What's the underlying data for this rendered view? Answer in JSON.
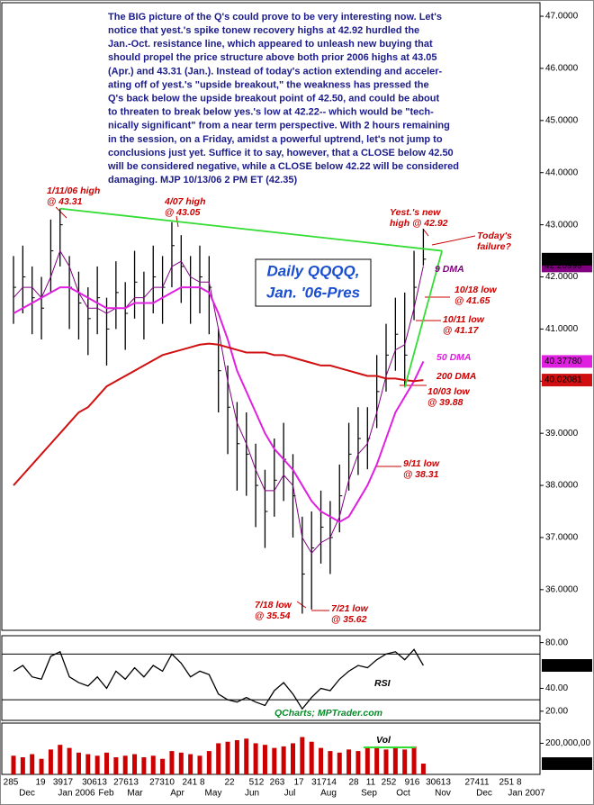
{
  "chart_data": [
    {
      "type": "ohlc",
      "title": [
        "Daily QQQQ,",
        "Jan. '06-Pres"
      ],
      "high": [
        42.4,
        42.6,
        42.2,
        42.0,
        43.1,
        43.31,
        42.4,
        42.1,
        41.8,
        42.2,
        41.6,
        42.3,
        41.9,
        42.5,
        42.1,
        42.6,
        42.4,
        43.05,
        42.8,
        42.4,
        42.6,
        42.4,
        41.0,
        40.3,
        39.6,
        39.4,
        38.8,
        38.3,
        38.9,
        39.2,
        38.6,
        37.4,
        37.5,
        37.9,
        37.7,
        38.4,
        39.2,
        39.5,
        39.5,
        40.5,
        41.1,
        41.6,
        41.7,
        42.5,
        42.92
      ],
      "low": [
        41.1,
        41.3,
        40.9,
        40.8,
        41.7,
        42.2,
        41.0,
        40.8,
        40.5,
        40.9,
        40.3,
        41.0,
        40.6,
        41.2,
        40.8,
        41.3,
        41.1,
        41.8,
        41.5,
        41.1,
        41.3,
        40.9,
        39.4,
        38.6,
        37.9,
        37.8,
        37.2,
        36.8,
        37.4,
        37.7,
        37.0,
        35.54,
        35.62,
        36.5,
        36.3,
        37.1,
        37.9,
        38.2,
        38.31,
        39.1,
        39.8,
        40.2,
        39.88,
        41.17,
        42.22
      ],
      "close": [
        41.8,
        42.0,
        41.6,
        41.4,
        42.5,
        43.0,
        41.8,
        41.5,
        41.2,
        41.6,
        41.0,
        41.7,
        41.3,
        41.9,
        41.5,
        42.0,
        41.8,
        42.6,
        42.2,
        41.8,
        42.0,
        41.8,
        40.2,
        39.5,
        38.8,
        38.6,
        38.0,
        37.5,
        38.1,
        38.5,
        37.8,
        36.3,
        36.8,
        37.2,
        37.0,
        37.8,
        38.6,
        38.9,
        38.9,
        39.8,
        40.5,
        40.9,
        40.5,
        41.8,
        42.34
      ],
      "close_last_label": "42.3400",
      "color": "#000000",
      "series": [
        {
          "name": "9 DMA",
          "color": "#800080",
          "values": [
            41.6,
            41.8,
            41.8,
            41.6,
            42.0,
            42.5,
            42.2,
            41.7,
            41.4,
            41.4,
            41.3,
            41.4,
            41.4,
            41.6,
            41.6,
            41.8,
            41.8,
            42.2,
            42.3,
            42.0,
            41.9,
            41.9,
            41.0,
            40.0,
            39.2,
            38.8,
            38.3,
            37.9,
            37.9,
            38.2,
            38.0,
            37.0,
            36.7,
            36.9,
            37.0,
            37.4,
            38.1,
            38.6,
            38.8,
            39.4,
            40.1,
            40.6,
            40.7,
            41.4,
            42.20999
          ],
          "last_label": "42.20999"
        },
        {
          "name": "50 DMA",
          "color": "#e020e0",
          "values": [
            41.3,
            41.4,
            41.5,
            41.6,
            41.7,
            41.8,
            41.8,
            41.7,
            41.6,
            41.5,
            41.4,
            41.4,
            41.4,
            41.5,
            41.5,
            41.5,
            41.6,
            41.7,
            41.8,
            41.8,
            41.8,
            41.7,
            41.3,
            40.8,
            40.2,
            39.8,
            39.4,
            39.0,
            38.7,
            38.5,
            38.3,
            38.0,
            37.7,
            37.5,
            37.4,
            37.3,
            37.4,
            37.7,
            38.0,
            38.4,
            38.9,
            39.4,
            39.7,
            40.0,
            40.3778
          ],
          "last_label": "40.37780"
        },
        {
          "name": "200 DMA",
          "color": "#d01010",
          "values": [
            38.0,
            38.2,
            38.4,
            38.6,
            38.8,
            39.0,
            39.2,
            39.4,
            39.5,
            39.7,
            39.9,
            40.0,
            40.1,
            40.2,
            40.3,
            40.4,
            40.5,
            40.55,
            40.6,
            40.65,
            40.7,
            40.72,
            40.7,
            40.65,
            40.6,
            40.55,
            40.55,
            40.55,
            40.5,
            40.5,
            40.45,
            40.4,
            40.35,
            40.3,
            40.3,
            40.25,
            40.2,
            40.15,
            40.1,
            40.1,
            40.05,
            40.05,
            40.02,
            40.0,
            40.02081
          ],
          "last_label": "40.02081"
        }
      ],
      "trendlines": [
        {
          "color": "#33dd33",
          "from": [
            5,
            43.31
          ],
          "to": [
            46,
            42.5
          ]
        },
        {
          "color": "#33dd33",
          "from": [
            42,
            39.88
          ],
          "to": [
            46,
            42.5
          ]
        }
      ],
      "ylim": [
        35.22,
        47.26
      ],
      "yticks": [
        {
          "value": 47,
          "label": "47.0000"
        },
        {
          "value": 46,
          "label": "46.0000"
        },
        {
          "value": 45,
          "label": "45.0000"
        },
        {
          "value": 44,
          "label": "44.0000"
        },
        {
          "value": 43,
          "label": "43.0000"
        },
        {
          "value": 42,
          "label": "42.0000"
        },
        {
          "value": 41,
          "label": "41.0000"
        },
        {
          "value": 40,
          "label": "40.0000"
        },
        {
          "value": 39,
          "label": "39.0000"
        },
        {
          "value": 38,
          "label": "38.0000"
        },
        {
          "value": 37,
          "label": "37.0000"
        },
        {
          "value": 36,
          "label": "36.0000"
        }
      ],
      "commentary": [
        "The BIG picture of the Q's could prove to be very interesting now. Let's",
        "notice that yest.'s spike tonew recovery highs at 42.92 hurdled the",
        "Jan.-Oct. resistance line, which appeared to unleash new buying that",
        "should propel the price structure above both prior 2006 highs at 43.05",
        "(Apr.) and 43.31 (Jan.). Instead of today's action extending and acceler-",
        "ating off of yest.'s \"upside breakout,\" the weakness has pressed the",
        "Q's back below the upside breakout point of 42.50, and could be about",
        "to threaten to break below yes.'s low at 42.22-- which would be \"tech-",
        "nically significant\" from a near term perspective. With 2 hours remaining",
        "in the session, on a Friday, amidst a powerful uptrend, let's not jump to",
        "conclusions just yet. Suffice it to say, however, that a CLOSE below 42.50",
        "will be considered negative, while a CLOSE below 42.22 will be considered",
        "damaging.  MJP 10/13/06 2 PM ET (42.35)"
      ],
      "annotations": [
        {
          "lines": [
            "1/11/06 high",
            "@ 43.31"
          ],
          "color": "#cc0000"
        },
        {
          "lines": [
            "4/07 high",
            "@ 43.05"
          ],
          "color": "#cc0000"
        },
        {
          "lines": [
            "Yest.'s new",
            "high @ 42.92"
          ],
          "color": "#cc0000"
        },
        {
          "lines": [
            "Today's",
            "failure?"
          ],
          "color": "#cc0000"
        },
        {
          "lines": [
            "9 DMA"
          ],
          "color": "#800080"
        },
        {
          "lines": [
            "10/18 low",
            "@ 41.65"
          ],
          "color": "#cc0000"
        },
        {
          "lines": [
            "10/11 low",
            "@ 41.17"
          ],
          "color": "#cc0000"
        },
        {
          "lines": [
            "50 DMA"
          ],
          "color": "#e020e0"
        },
        {
          "lines": [
            "200 DMA"
          ],
          "color": "#cc0000"
        },
        {
          "lines": [
            "10/03 low",
            "@ 39.88"
          ],
          "color": "#cc0000"
        },
        {
          "lines": [
            "9/11 low",
            "@ 38.31"
          ],
          "color": "#cc0000"
        },
        {
          "lines": [
            "7/18 low",
            "@ 35.54"
          ],
          "color": "#cc0000"
        },
        {
          "lines": [
            "7/21 low",
            "@ 35.62"
          ],
          "color": "#cc0000"
        }
      ]
    },
    {
      "type": "line",
      "name": "RSI",
      "color": "#000000",
      "values": [
        55,
        60,
        50,
        48,
        68,
        72,
        50,
        45,
        42,
        50,
        40,
        55,
        48,
        58,
        50,
        60,
        55,
        70,
        62,
        50,
        55,
        52,
        35,
        30,
        28,
        32,
        28,
        25,
        38,
        45,
        35,
        22,
        32,
        40,
        38,
        48,
        55,
        60,
        58,
        65,
        70,
        72,
        65,
        74,
        60.01
      ],
      "levels": [
        70,
        30
      ],
      "ylim": [
        12,
        86
      ],
      "yticks": [
        {
          "value": 80,
          "label": "80.00"
        },
        {
          "value": 40,
          "label": "40.00"
        },
        {
          "value": 20,
          "label": "20.00"
        }
      ]
    },
    {
      "type": "bar",
      "name": "Vol",
      "color": "#cc0000",
      "values": [
        120000000,
        110000000,
        130000000,
        100000000,
        160000000,
        190000000,
        170000000,
        140000000,
        130000000,
        120000000,
        140000000,
        110000000,
        120000000,
        130000000,
        110000000,
        120000000,
        100000000,
        150000000,
        140000000,
        130000000,
        120000000,
        150000000,
        200000000,
        210000000,
        220000000,
        230000000,
        200000000,
        190000000,
        170000000,
        180000000,
        200000000,
        240000000,
        210000000,
        170000000,
        150000000,
        140000000,
        160000000,
        150000000,
        170000000,
        180000000,
        160000000,
        170000000,
        160000000,
        180000000,
        69312015
      ],
      "last_label": "69,312,015",
      "ylim": [
        0,
        330000000
      ],
      "yticks": [
        {
          "value": 200000000,
          "label": "200,000,00"
        }
      ]
    }
  ],
  "credit": "QCharts; MPTrader.com",
  "x_axis": {
    "days": [
      "285",
      "19",
      "3917",
      "30613",
      "27613",
      "27310",
      "241 8",
      "22",
      "512",
      "263",
      "17",
      "31714",
      "28",
      "11",
      "252",
      "916",
      "30613",
      "27411",
      "251 8"
    ],
    "months": [
      "Dec",
      "Jan 2006",
      "Feb",
      "Mar",
      "Apr",
      "May",
      "Jun",
      "Jul",
      "Aug",
      "Sep",
      "Oct",
      "Nov",
      "Dec",
      "Jan 2007"
    ]
  }
}
